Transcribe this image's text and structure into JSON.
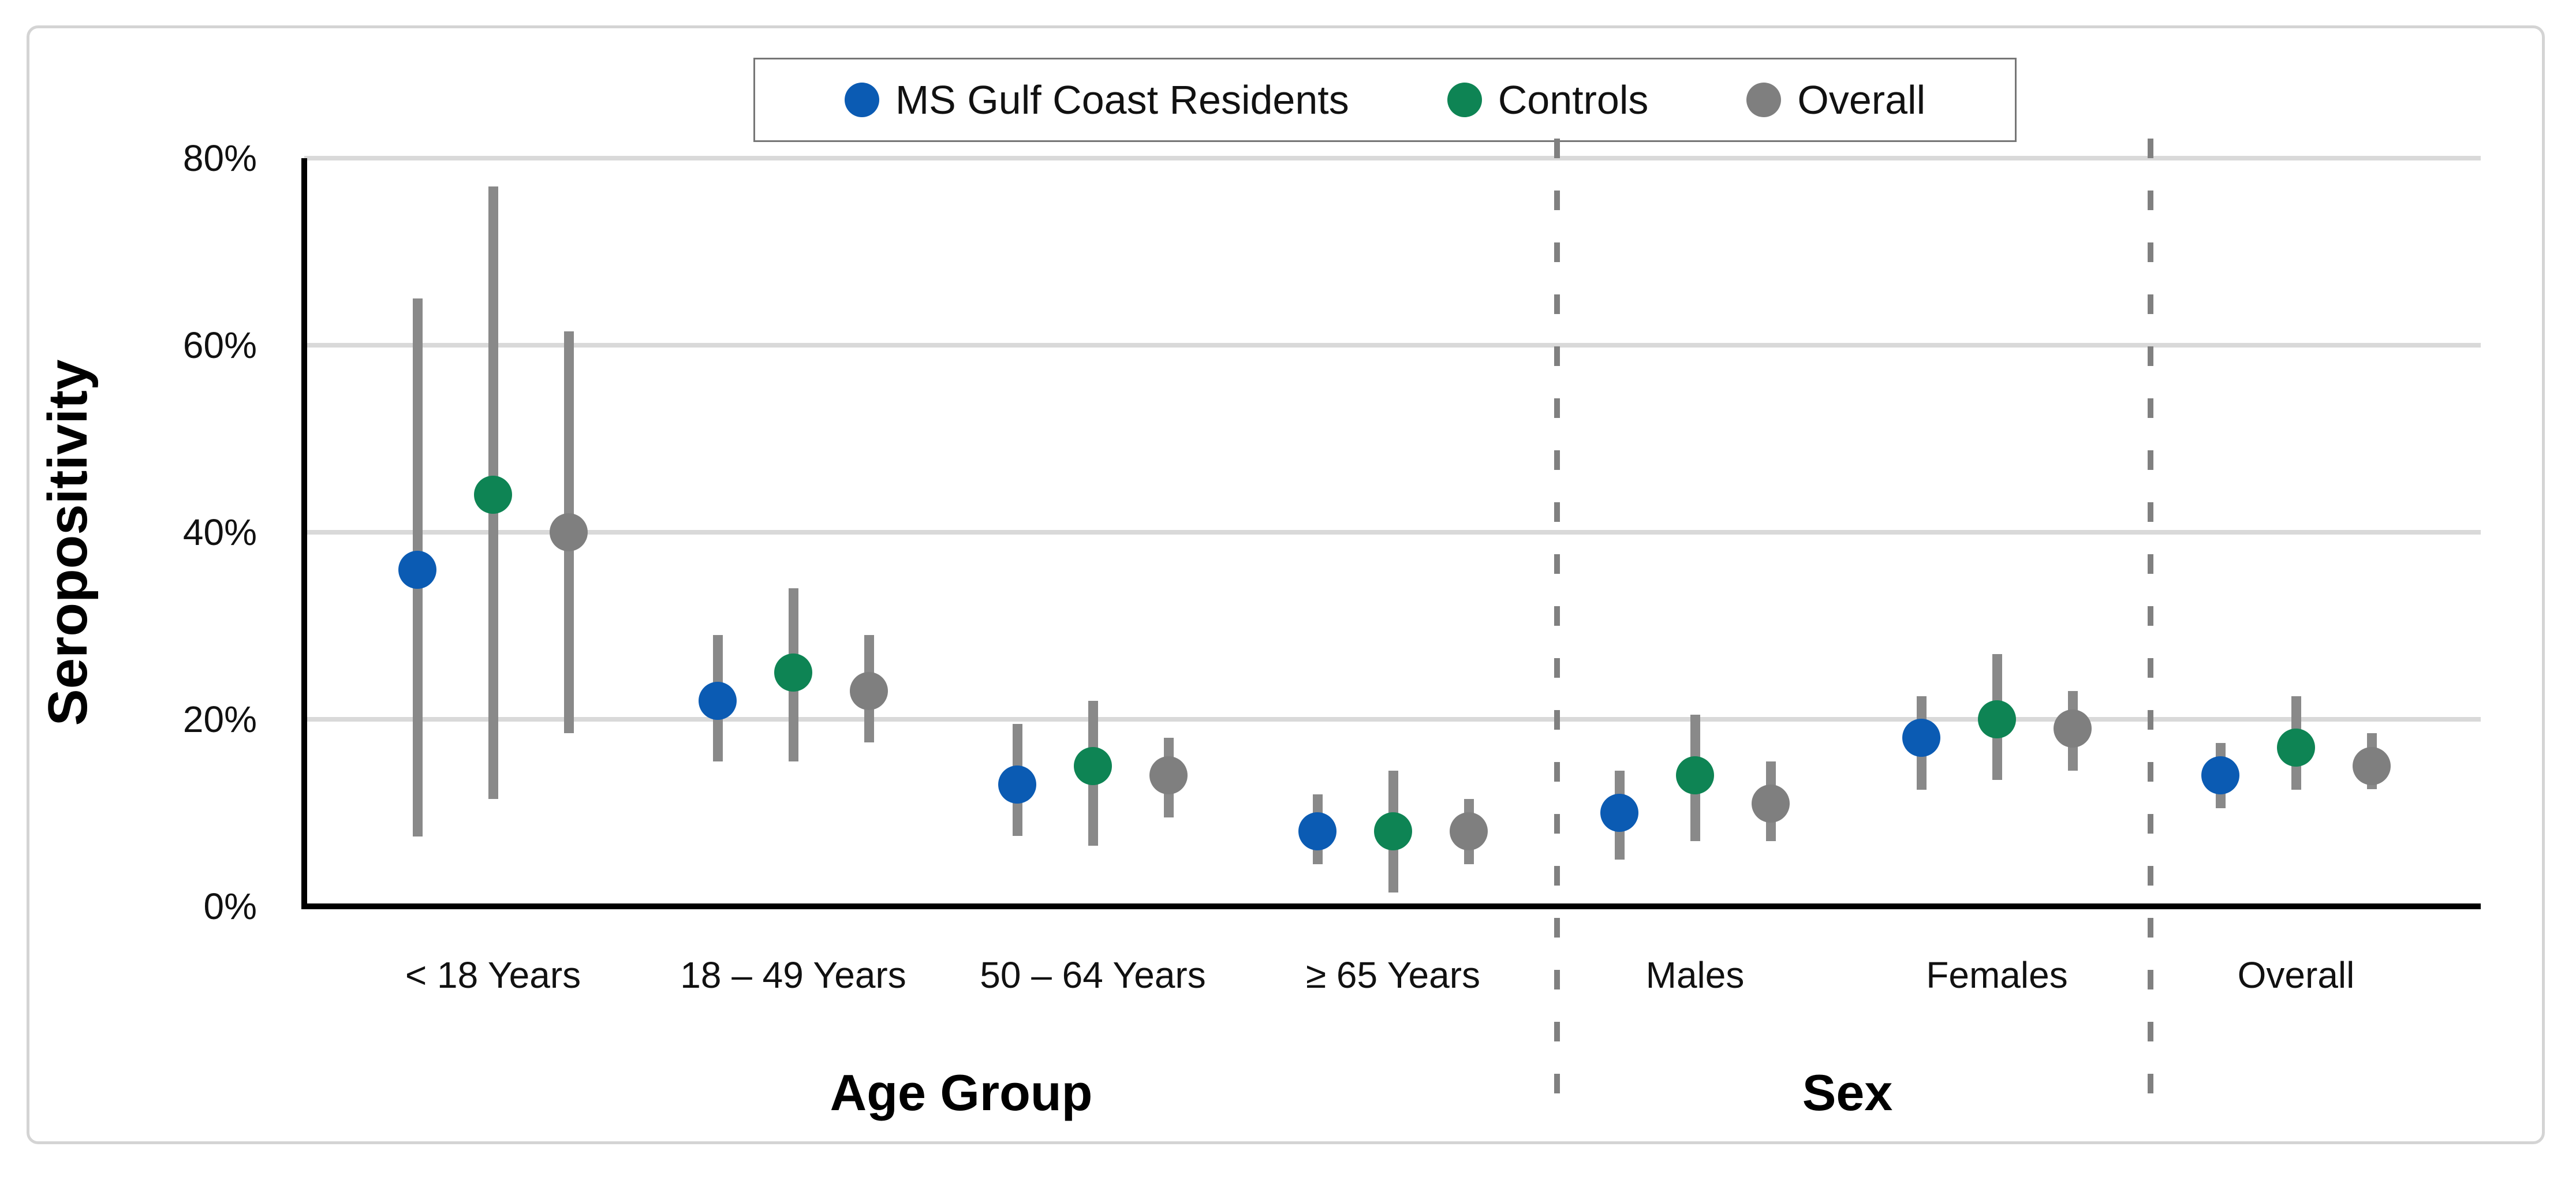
{
  "legend": {
    "items": [
      {
        "label": "MS Gulf Coast Residents",
        "color": "#0B5BB3"
      },
      {
        "label": "Controls",
        "color": "#0E8454"
      },
      {
        "label": "Overall",
        "color": "#7F7F7F"
      }
    ]
  },
  "y_axis": {
    "title": "Seropositivity",
    "tick_labels": [
      "0%",
      "20%",
      "40%",
      "60%",
      "80%"
    ]
  },
  "x_axis": {
    "category_labels": [
      "< 18 Years",
      "18 – 49 Years",
      "50 – 64 Years",
      "≥ 65 Years",
      "Males",
      "Females",
      "Overall"
    ],
    "group_titles": [
      "Age Group",
      "Sex"
    ]
  },
  "chart_data": {
    "type": "scatter",
    "title": "",
    "xlabel": "",
    "ylabel": "Seropositivity",
    "ylim": [
      0,
      80
    ],
    "y_ticks_percent": [
      0,
      20,
      40,
      60,
      80
    ],
    "grid": "horizontal",
    "legend_position": "top-center",
    "categories": [
      "< 18 Years",
      "18 – 49 Years",
      "50 – 64 Years",
      "≥ 65 Years",
      "Males",
      "Females",
      "Overall"
    ],
    "category_groups": [
      {
        "label": "Age Group",
        "category_indices": [
          0,
          1,
          2,
          3
        ]
      },
      {
        "label": "Sex",
        "category_indices": [
          4,
          5
        ]
      },
      {
        "label": "",
        "category_indices": [
          6
        ]
      }
    ],
    "series": [
      {
        "name": "MS Gulf Coast Residents",
        "color": "#0B5BB3",
        "values": [
          36,
          22,
          13,
          8,
          10,
          18,
          14
        ],
        "ci_low": [
          7.5,
          15.5,
          7.5,
          4.5,
          5,
          12.5,
          10.5
        ],
        "ci_high": [
          65,
          29,
          19.5,
          12,
          14.5,
          22.5,
          17.5
        ]
      },
      {
        "name": "Controls",
        "color": "#0E8454",
        "values": [
          44,
          25,
          15,
          8,
          14,
          20,
          17
        ],
        "ci_low": [
          11.5,
          15.5,
          6.5,
          1.5,
          7,
          13.5,
          12.5
        ],
        "ci_high": [
          77,
          34,
          22,
          14.5,
          20.5,
          27,
          22.5
        ]
      },
      {
        "name": "Overall",
        "color": "#7F7F7F",
        "values": [
          40,
          23,
          14,
          8,
          11,
          19,
          15
        ],
        "ci_low": [
          18.5,
          17.5,
          9.5,
          4.5,
          7,
          14.5,
          12.5
        ],
        "ci_high": [
          61.5,
          29,
          18,
          11.5,
          15.5,
          23,
          18.5
        ]
      }
    ],
    "error_bar_color": "#898989",
    "gridline_color": "#D9D9D9",
    "divider_style": "dashed-vertical-between-groups"
  }
}
